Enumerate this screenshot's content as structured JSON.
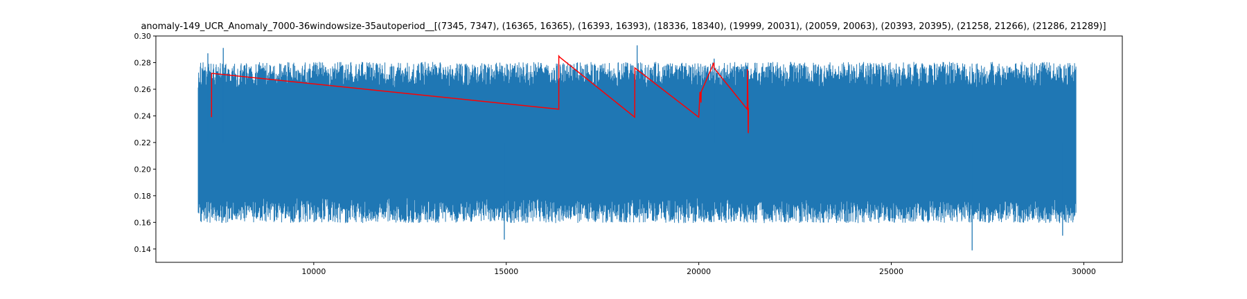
{
  "chart_data": {
    "type": "line",
    "title": "anomaly-149_UCR_Anomaly_7000-36windowsize-35autoperiod__[(7345, 7347), (16365, 16365), (16393, 16393), (18336, 18340), (19999, 20031), (20059, 20063), (20393, 20395), (21258, 21266), (21286, 21289)]",
    "xlabel": "",
    "ylabel": "",
    "xlim": [
      5900,
      31000
    ],
    "ylim": [
      0.13,
      0.3
    ],
    "x_ticks": [
      10000,
      15000,
      20000,
      25000,
      30000
    ],
    "x_tick_labels": [
      "10000",
      "15000",
      "20000",
      "25000",
      "30000"
    ],
    "y_ticks": [
      0.14,
      0.16,
      0.18,
      0.2,
      0.22,
      0.24,
      0.26,
      0.28,
      0.3
    ],
    "y_tick_labels": [
      "0.14",
      "0.16",
      "0.18",
      "0.20",
      "0.22",
      "0.24",
      "0.26",
      "0.28",
      "0.30"
    ],
    "grid": false,
    "legend": "none",
    "series": [
      {
        "color": "#1f77b4",
        "kind": "dense-signal",
        "x_range": [
          7000,
          29800
        ],
        "typical_band": [
          0.165,
          0.275
        ],
        "notable_extremes": [
          {
            "x": 7250,
            "y": 0.287
          },
          {
            "x": 7650,
            "y": 0.291
          },
          {
            "x": 14950,
            "y": 0.147
          },
          {
            "x": 18400,
            "y": 0.293
          },
          {
            "x": 20400,
            "y": 0.283
          },
          {
            "x": 27100,
            "y": 0.139
          },
          {
            "x": 29450,
            "y": 0.15
          }
        ]
      },
      {
        "color": "#ff0000",
        "kind": "anomaly-line",
        "points": [
          {
            "x": 7345,
            "y": 0.239
          },
          {
            "x": 7347,
            "y": 0.272
          },
          {
            "x": 16365,
            "y": 0.245
          },
          {
            "x": 16365,
            "y": 0.285
          },
          {
            "x": 16393,
            "y": 0.284
          },
          {
            "x": 18336,
            "y": 0.239
          },
          {
            "x": 18340,
            "y": 0.276
          },
          {
            "x": 19999,
            "y": 0.239
          },
          {
            "x": 20031,
            "y": 0.258
          },
          {
            "x": 20059,
            "y": 0.25
          },
          {
            "x": 20063,
            "y": 0.258
          },
          {
            "x": 20393,
            "y": 0.28
          },
          {
            "x": 20395,
            "y": 0.276
          },
          {
            "x": 21258,
            "y": 0.245
          },
          {
            "x": 21266,
            "y": 0.275
          },
          {
            "x": 21286,
            "y": 0.227
          },
          {
            "x": 21289,
            "y": 0.246
          }
        ]
      }
    ]
  }
}
